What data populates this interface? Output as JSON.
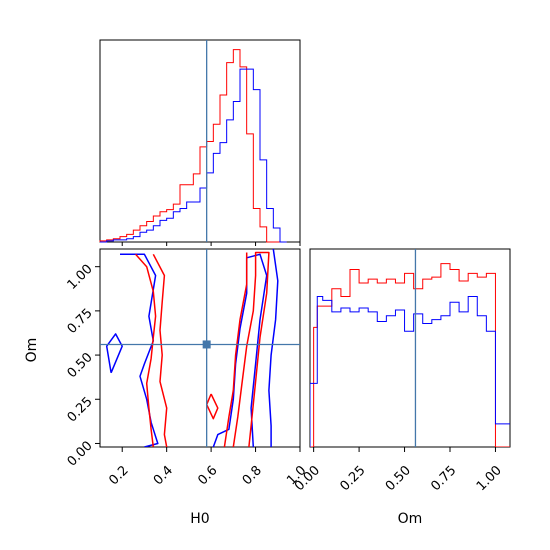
{
  "chart_data": [
    {
      "type": "histogram",
      "panel": "H0 marginal",
      "xlim": [
        0.1,
        1.0
      ],
      "bin_edges": [
        0.1,
        0.13,
        0.16,
        0.19,
        0.22,
        0.25,
        0.28,
        0.31,
        0.34,
        0.37,
        0.4,
        0.43,
        0.46,
        0.49,
        0.52,
        0.55,
        0.58,
        0.61,
        0.64,
        0.67,
        0.7,
        0.73,
        0.76,
        0.79,
        0.82,
        0.85,
        0.88,
        0.91,
        0.94
      ],
      "series": [
        {
          "color": "#ff0000",
          "counts": [
            1,
            2,
            3,
            5,
            7,
            11,
            15,
            19,
            24,
            28,
            30,
            35,
            53,
            53,
            63,
            88,
            93,
            109,
            136,
            166,
            178,
            162,
            100,
            31,
            14,
            0,
            0,
            0
          ]
        },
        {
          "color": "#0000ff",
          "counts": [
            0,
            1,
            2,
            2,
            3,
            5,
            9,
            11,
            15,
            20,
            22,
            28,
            31,
            37,
            37,
            50,
            64,
            82,
            92,
            113,
            130,
            160,
            160,
            141,
            76,
            31,
            13,
            0
          ]
        }
      ],
      "truth_x": 0.58
    },
    {
      "type": "contour",
      "panel": "H0 vs Om",
      "xlabel": "H0",
      "ylabel": "Om",
      "xlim": [
        0.1,
        1.0
      ],
      "ylim": [
        -0.02,
        1.1
      ],
      "xticks": [
        "0.2",
        "0.4",
        "0.6",
        "0.8",
        "1.0"
      ],
      "yticks": [
        "0.00",
        "0.25",
        "0.50",
        "0.75",
        "1.00"
      ],
      "truth": [
        0.58,
        0.56
      ],
      "contours": [
        {
          "color": "#0000ff",
          "level": "outer",
          "points": [
            [
              0.88,
              1.1
            ],
            [
              0.9,
              0.92
            ],
            [
              0.89,
              0.7
            ],
            [
              0.87,
              0.5
            ],
            [
              0.86,
              0.3
            ],
            [
              0.87,
              0.1
            ],
            [
              0.87,
              -0.02
            ]
          ]
        },
        {
          "color": "#0000ff",
          "level": "inner",
          "points": [
            [
              0.61,
              -0.02
            ],
            [
              0.63,
              0.05
            ],
            [
              0.68,
              0.08
            ],
            [
              0.7,
              0.25
            ],
            [
              0.71,
              0.45
            ],
            [
              0.73,
              0.65
            ],
            [
              0.76,
              0.85
            ],
            [
              0.76,
              1.05
            ],
            [
              0.82,
              1.07
            ],
            [
              0.85,
              0.95
            ],
            [
              0.82,
              0.7
            ],
            [
              0.8,
              0.45
            ],
            [
              0.78,
              0.2
            ],
            [
              0.79,
              -0.02
            ]
          ]
        },
        {
          "color": "#0000ff",
          "level": "left",
          "points": [
            [
              0.19,
              1.07
            ],
            [
              0.3,
              1.07
            ],
            [
              0.35,
              0.95
            ],
            [
              0.32,
              0.72
            ],
            [
              0.34,
              0.58
            ],
            [
              0.3,
              0.45
            ],
            [
              0.28,
              0.38
            ],
            [
              0.31,
              0.25
            ],
            [
              0.33,
              0.12
            ],
            [
              0.36,
              0.0
            ],
            [
              0.3,
              -0.02
            ]
          ]
        },
        {
          "color": "#0000ff",
          "level": "island",
          "points": [
            [
              0.15,
              0.4
            ],
            [
              0.2,
              0.55
            ],
            [
              0.17,
              0.62
            ],
            [
              0.13,
              0.55
            ],
            [
              0.15,
              0.4
            ]
          ]
        },
        {
          "color": "#ff0000",
          "level": "outer",
          "points": [
            [
              0.7,
              -0.02
            ],
            [
              0.72,
              0.15
            ],
            [
              0.74,
              0.35
            ],
            [
              0.76,
              0.55
            ],
            [
              0.79,
              0.75
            ],
            [
              0.8,
              0.95
            ],
            [
              0.8,
              1.08
            ],
            [
              0.86,
              1.08
            ],
            [
              0.85,
              0.85
            ],
            [
              0.82,
              0.6
            ],
            [
              0.8,
              0.35
            ],
            [
              0.78,
              0.1
            ],
            [
              0.77,
              -0.02
            ]
          ]
        },
        {
          "color": "#ff0000",
          "level": "inner",
          "points": [
            [
              0.66,
              -0.02
            ],
            [
              0.68,
              0.15
            ],
            [
              0.7,
              0.3
            ],
            [
              0.71,
              0.5
            ],
            [
              0.73,
              0.7
            ],
            [
              0.76,
              0.9
            ],
            [
              0.76,
              1.08
            ]
          ]
        },
        {
          "color": "#ff0000",
          "level": "left",
          "points": [
            [
              0.26,
              1.07
            ],
            [
              0.31,
              1.0
            ],
            [
              0.34,
              0.86
            ],
            [
              0.35,
              0.72
            ],
            [
              0.34,
              0.6
            ],
            [
              0.33,
              0.48
            ],
            [
              0.31,
              0.34
            ],
            [
              0.32,
              0.2
            ],
            [
              0.33,
              0.08
            ],
            [
              0.34,
              -0.02
            ]
          ]
        },
        {
          "color": "#ff0000",
          "level": "mid",
          "points": [
            [
              0.34,
              1.07
            ],
            [
              0.39,
              0.95
            ],
            [
              0.38,
              0.8
            ],
            [
              0.37,
              0.64
            ],
            [
              0.38,
              0.5
            ],
            [
              0.37,
              0.35
            ],
            [
              0.4,
              0.2
            ],
            [
              0.39,
              0.05
            ],
            [
              0.4,
              -0.02
            ]
          ]
        },
        {
          "color": "#ff0000",
          "level": "island",
          "points": [
            [
              0.6,
              0.28
            ],
            [
              0.63,
              0.2
            ],
            [
              0.61,
              0.14
            ],
            [
              0.58,
              0.22
            ],
            [
              0.6,
              0.28
            ]
          ]
        }
      ]
    },
    {
      "type": "histogram",
      "panel": "Om marginal",
      "xlabel": "Om",
      "xlim": [
        -0.02,
        1.08
      ],
      "xticks": [
        "0.00",
        "0.25",
        "0.50",
        "0.75",
        "1.00"
      ],
      "bin_edges": [
        -0.02,
        0.0,
        0.02,
        0.05,
        0.1,
        0.15,
        0.2,
        0.25,
        0.3,
        0.35,
        0.4,
        0.45,
        0.5,
        0.55,
        0.6,
        0.65,
        0.7,
        0.75,
        0.8,
        0.85,
        0.9,
        0.95,
        1.0,
        1.05,
        1.08
      ],
      "series": [
        {
          "color": "#ff0000",
          "counts": [
            0,
            62,
            73,
            73,
            82,
            78,
            92,
            85,
            87,
            85,
            87,
            85,
            90,
            82,
            87,
            88,
            95,
            92,
            86,
            90,
            88,
            90,
            0,
            0
          ]
        },
        {
          "color": "#0000ff",
          "counts": [
            33,
            33,
            78,
            76,
            70,
            72,
            70,
            72,
            70,
            65,
            68,
            71,
            60,
            69,
            64,
            66,
            68,
            75,
            70,
            78,
            68,
            60,
            12,
            12
          ]
        }
      ],
      "truth_x": 0.56
    }
  ]
}
